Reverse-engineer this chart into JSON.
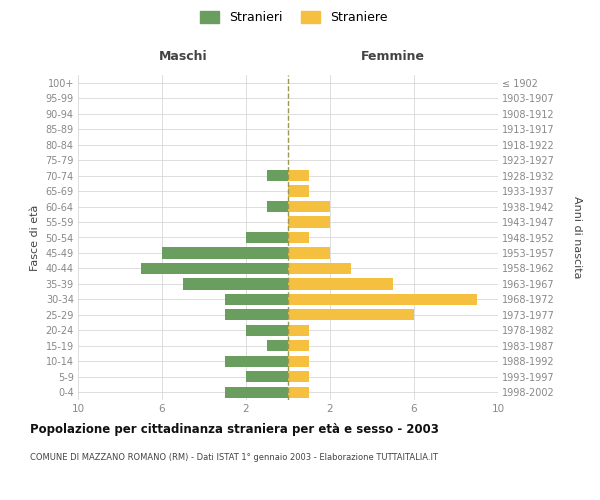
{
  "age_groups": [
    "0-4",
    "5-9",
    "10-14",
    "15-19",
    "20-24",
    "25-29",
    "30-34",
    "35-39",
    "40-44",
    "45-49",
    "50-54",
    "55-59",
    "60-64",
    "65-69",
    "70-74",
    "75-79",
    "80-84",
    "85-89",
    "90-94",
    "95-99",
    "100+"
  ],
  "birth_years": [
    "1998-2002",
    "1993-1997",
    "1988-1992",
    "1983-1987",
    "1978-1982",
    "1973-1977",
    "1968-1972",
    "1963-1967",
    "1958-1962",
    "1953-1957",
    "1948-1952",
    "1943-1947",
    "1938-1942",
    "1933-1937",
    "1928-1932",
    "1923-1927",
    "1918-1922",
    "1913-1917",
    "1908-1912",
    "1903-1907",
    "≤ 1902"
  ],
  "maschi": [
    3,
    2,
    3,
    1,
    2,
    3,
    3,
    5,
    7,
    6,
    2,
    0,
    1,
    0,
    1,
    0,
    0,
    0,
    0,
    0,
    0
  ],
  "femmine": [
    1,
    1,
    1,
    1,
    1,
    6,
    9,
    5,
    3,
    2,
    1,
    2,
    2,
    1,
    1,
    0,
    0,
    0,
    0,
    0,
    0
  ],
  "color_maschi": "#6a9e5e",
  "color_femmine": "#f5c040",
  "title": "Popolazione per cittadinanza straniera per età e sesso - 2003",
  "subtitle": "COMUNE DI MAZZANO ROMANO (RM) - Dati ISTAT 1° gennaio 2003 - Elaborazione TUTTAITALIA.IT",
  "header_left": "Maschi",
  "header_right": "Femmine",
  "ylabel_left": "Fasce di età",
  "ylabel_right": "Anni di nascita",
  "legend_maschi": "Stranieri",
  "legend_femmine": "Straniere",
  "xlim": 10,
  "background_color": "#ffffff",
  "grid_color": "#d0d0d0",
  "dashed_line_color": "#999955",
  "label_color": "#888888",
  "header_color": "#444444",
  "title_color": "#111111",
  "bar_height": 0.72
}
